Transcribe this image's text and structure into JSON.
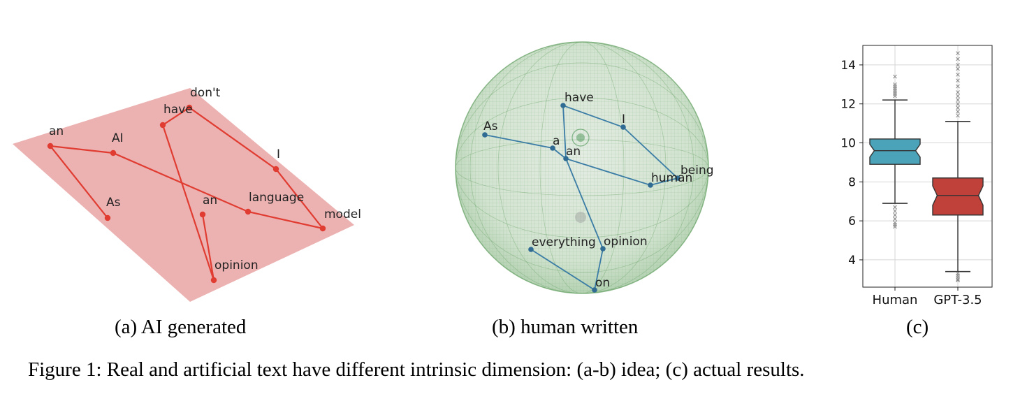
{
  "subfigure_a": {
    "caption": "(a) AI generated",
    "plane_color": "#e9a3a3",
    "line_color": "#e03c31",
    "labels": {
      "dont": "don't",
      "have": "have",
      "an1": "an",
      "ai": "AI",
      "i": "I",
      "as": "As",
      "an2": "an",
      "language": "language",
      "model": "model",
      "opinion": "opinion"
    }
  },
  "subfigure_b": {
    "caption": "(b) human written",
    "line_color": "#3a7ca5",
    "sphere_color": "#7bb07a",
    "labels": {
      "have": "have",
      "i": "I",
      "as": "As",
      "a": "a",
      "an": "an",
      "being": "being",
      "human": "human",
      "everything": "everything",
      "opinion": "opinion",
      "on": "on"
    }
  },
  "subfigure_c": {
    "caption": "(c)"
  },
  "figure_caption": "Figure 1: Real and artificial text have different intrinsic dimension: (a-b) idea; (c) actual results.",
  "chart_data": {
    "type": "box",
    "categories": [
      "Human",
      "GPT-3.5"
    ],
    "ylim": [
      2.6,
      15.0
    ],
    "yticks": [
      4,
      6,
      8,
      10,
      12,
      14
    ],
    "grid": true,
    "notched": true,
    "colors": [
      "#4aa3b8",
      "#c0403a"
    ],
    "series": [
      {
        "name": "Human",
        "q1": 8.9,
        "median": 9.6,
        "q3": 10.2,
        "whisker_low": 6.9,
        "whisker_high": 12.2,
        "outliers": [
          13.4,
          13.0,
          12.9,
          12.8,
          12.7,
          12.6,
          12.5,
          12.4,
          6.7,
          6.5,
          6.3,
          6.1,
          5.9,
          5.8,
          5.7
        ]
      },
      {
        "name": "GPT-3.5",
        "q1": 6.3,
        "median": 7.3,
        "q3": 8.2,
        "whisker_low": 3.4,
        "whisker_high": 11.1,
        "outliers": [
          14.6,
          14.3,
          14.0,
          13.8,
          13.5,
          13.2,
          12.9,
          12.6,
          12.4,
          12.2,
          12.0,
          11.8,
          11.6,
          11.4,
          3.3,
          3.2,
          3.1,
          3.0,
          2.95
        ]
      }
    ]
  }
}
